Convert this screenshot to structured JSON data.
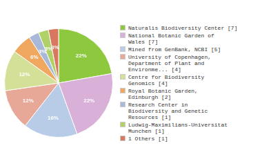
{
  "chart_data": {
    "type": "pie",
    "categories": [
      "Naturalis Biodiversity Center [7]",
      "National Botanic Garden of\nWales [7]",
      "Mined from GenBank, NCBI [5]",
      "University of Copenhagen,\nDepartment of Plant and\nEnvironme... [4]",
      "Centre for Biodiversity\nGenomics [4]",
      "Royal Botanic Garden,\nEdinburgh [2]",
      "Research Center in\nBiodiversity and Genetic\nResources [1]",
      "Ludwig-Maximilians-Universitat\nMunchen [1]",
      "1 Others [1]"
    ],
    "values": [
      22,
      22,
      16,
      12,
      12,
      6,
      3,
      3,
      3
    ],
    "value_labels": [
      "22%",
      "22%",
      "16%",
      "12%",
      "12%",
      "6%",
      "3%",
      "3%",
      "3%"
    ],
    "colors": [
      "#8dc83f",
      "#d8b0d8",
      "#b8cce8",
      "#e8a898",
      "#d4e098",
      "#f0a860",
      "#a8b8d8",
      "#b0d068",
      "#d87860"
    ],
    "data_labels": true,
    "legend": "right"
  }
}
